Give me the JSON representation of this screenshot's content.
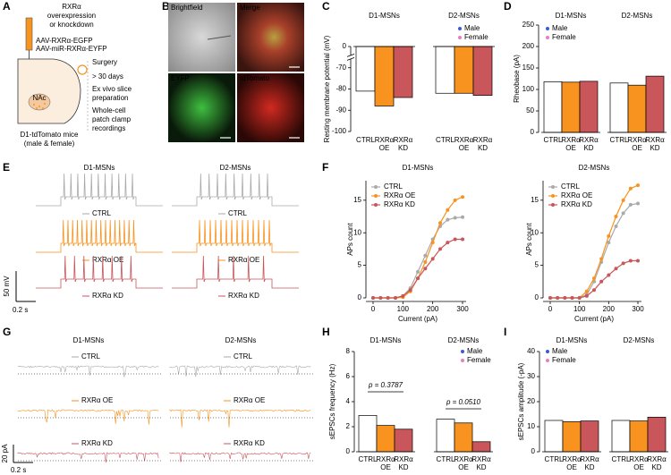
{
  "panel_labels": [
    "A",
    "B",
    "C",
    "D",
    "E",
    "F",
    "G",
    "H",
    "I"
  ],
  "schematic": {
    "title_lines": [
      "RXRα",
      "overexpression",
      "or knockdown"
    ],
    "vectors": [
      {
        "text": "AAV-RXRα-EGFP",
        "color": "#f7931e"
      },
      {
        "text": "AAV-miR-RXRα-EYFP",
        "color": "#c8565b"
      }
    ],
    "region": "NAc",
    "steps": [
      [
        "Surgery"
      ],
      [
        "> 30 days"
      ],
      [
        "Ex vivo slice",
        "preparation"
      ],
      [
        "Whole-cell",
        "patch clamp",
        "recordings"
      ]
    ],
    "mouse_lines": [
      "D1-tdTomato mice",
      "(male & female)"
    ]
  },
  "images": [
    "Brightfield",
    "Merge",
    "EYFP",
    "tdTomato"
  ],
  "traces_e": {
    "groups": [
      "D1-MSNs",
      "D2-MSNs"
    ],
    "conditions": [
      "CTRL",
      "RXRα OE",
      "RXRα KD"
    ],
    "colors": [
      "#aaaaaa",
      "#f7931e",
      "#c8565b"
    ],
    "scale_bar": {
      "y": "50 mV",
      "x": "0.2 s"
    }
  },
  "traces_g": {
    "groups": [
      "D1-MSNs",
      "D2-MSNs"
    ],
    "conditions": [
      "CTRL",
      "RXRα OE",
      "RXRα KD"
    ],
    "colors": [
      "#aaaaaa",
      "#f7931e",
      "#c8565b"
    ],
    "scale_bar": {
      "y": "20 pA",
      "x": "0.2 s"
    }
  },
  "chart_data": [
    {
      "type": "grouped_bar",
      "ylabel": "Resting membrane potential (mV)",
      "groups": [
        "D1-MSNs",
        "D2-MSNs"
      ],
      "categories": [
        [
          "CTRL"
        ],
        [
          "RXRα",
          "OE"
        ],
        [
          "RXRα",
          "KD"
        ]
      ],
      "colors": [
        "#ffffff",
        "#f7931e",
        "#c8565b"
      ],
      "values": [
        [
          -81,
          -88,
          -84
        ],
        [
          -82,
          -82,
          -83
        ]
      ],
      "ylim": [
        -100,
        0
      ],
      "yticks": [
        0,
        -70,
        -80,
        -90,
        -100
      ],
      "axis_break": true,
      "legend": [
        {
          "name": "Male",
          "color": "#3a5bd9"
        },
        {
          "name": "Female",
          "color": "#e87dc0"
        }
      ]
    },
    {
      "type": "grouped_bar",
      "ylabel": "Rheobase (pA)",
      "groups": [
        "D1-MSNs",
        "D2-MSNs"
      ],
      "categories": [
        [
          "CTRL"
        ],
        [
          "RXRα",
          "OE"
        ],
        [
          "RXRα",
          "KD"
        ]
      ],
      "colors": [
        "#ffffff",
        "#f7931e",
        "#c8565b"
      ],
      "values": [
        [
          118,
          117,
          119
        ],
        [
          115,
          110,
          131
        ]
      ],
      "ylim": [
        0,
        250
      ],
      "yticks": [
        0,
        50,
        100,
        150,
        200,
        250
      ],
      "legend": [
        {
          "name": "Male",
          "color": "#3a5bd9"
        },
        {
          "name": "Female",
          "color": "#e87dc0"
        }
      ]
    },
    {
      "type": "line",
      "title": "D1-MSNs",
      "xlabel": "Current (pA)",
      "ylabel": "APs count",
      "x": [
        0,
        25,
        50,
        75,
        100,
        125,
        150,
        175,
        200,
        225,
        250,
        275,
        300
      ],
      "xlim": [
        0,
        300
      ],
      "xticks": [
        0,
        100,
        200,
        300
      ],
      "ylim": [
        0,
        18
      ],
      "yticks": [
        0,
        5,
        10,
        15
      ],
      "series": [
        {
          "name": "CTRL",
          "color": "#aaaaaa",
          "values": [
            0,
            0,
            0,
            0,
            0.3,
            1.5,
            4,
            6.5,
            9,
            11,
            12,
            12.3,
            12.4
          ]
        },
        {
          "name": "RXRα OE",
          "color": "#f7931e",
          "values": [
            0,
            0,
            0,
            0,
            0.1,
            1,
            3,
            5.5,
            8.5,
            11.5,
            13.5,
            15,
            15.5
          ]
        },
        {
          "name": "RXRα KD",
          "color": "#c8565b",
          "values": [
            0,
            0,
            0,
            0,
            0.3,
            1.2,
            3,
            4.5,
            6,
            7.5,
            8.5,
            9,
            9
          ]
        }
      ]
    },
    {
      "type": "line",
      "title": "D2-MSNs",
      "xlabel": "Current (pA)",
      "ylabel": "APs count",
      "x": [
        0,
        25,
        50,
        75,
        100,
        125,
        150,
        175,
        200,
        225,
        250,
        275,
        300
      ],
      "xlim": [
        0,
        300
      ],
      "xticks": [
        0,
        100,
        200,
        300
      ],
      "ylim": [
        0,
        18
      ],
      "yticks": [
        0,
        5,
        10,
        15
      ],
      "series": [
        {
          "name": "CTRL",
          "color": "#aaaaaa",
          "values": [
            0,
            0,
            0,
            0,
            0,
            0.5,
            2.5,
            5.5,
            8.5,
            11,
            13,
            14.3,
            14.5
          ]
        },
        {
          "name": "RXRα OE",
          "color": "#f7931e",
          "values": [
            0,
            0,
            0,
            0,
            0,
            1,
            3,
            6,
            9.5,
            12.5,
            15,
            16.8,
            17.3
          ]
        },
        {
          "name": "RXRα KD",
          "color": "#c8565b",
          "values": [
            0,
            0,
            0,
            0,
            0,
            0.3,
            1.2,
            2.5,
            3.5,
            4.5,
            5.3,
            5.7,
            5.7
          ]
        }
      ]
    },
    {
      "type": "grouped_bar",
      "ylabel": "sEPSCs frequency (Hz)",
      "groups": [
        "D1-MSNs",
        "D2-MSNs"
      ],
      "categories": [
        [
          "CTRL"
        ],
        [
          "RXRα",
          "OE"
        ],
        [
          "RXRα",
          "KD"
        ]
      ],
      "colors": [
        "#ffffff",
        "#f7931e",
        "#c8565b"
      ],
      "values": [
        [
          2.9,
          2.1,
          1.8
        ],
        [
          2.6,
          2.3,
          0.8
        ]
      ],
      "ylim": [
        0,
        8
      ],
      "yticks": [
        0,
        2,
        4,
        6,
        8
      ],
      "annotations": [
        {
          "text": "p = 0.3787",
          "group": 0
        },
        {
          "text": "p = 0.0510",
          "group": 1
        }
      ],
      "legend": [
        {
          "name": "Male",
          "color": "#3a5bd9"
        },
        {
          "name": "Female",
          "color": "#e87dc0"
        }
      ]
    },
    {
      "type": "grouped_bar",
      "ylabel": "sEPSCs amplitude (-pA)",
      "groups": [
        "D1-MSNs",
        "D2-MSNs"
      ],
      "categories": [
        [
          "CTRL"
        ],
        [
          "RXRα",
          "OE"
        ],
        [
          "RXRα",
          "KD"
        ]
      ],
      "colors": [
        "#ffffff",
        "#f7931e",
        "#c8565b"
      ],
      "values": [
        [
          12.5,
          12,
          12.3
        ],
        [
          12.5,
          12.3,
          13.8
        ]
      ],
      "ylim": [
        0,
        40
      ],
      "yticks": [
        0,
        10,
        20,
        30,
        40
      ],
      "legend": [
        {
          "name": "Male",
          "color": "#3a5bd9"
        },
        {
          "name": "Female",
          "color": "#e87dc0"
        }
      ]
    }
  ]
}
